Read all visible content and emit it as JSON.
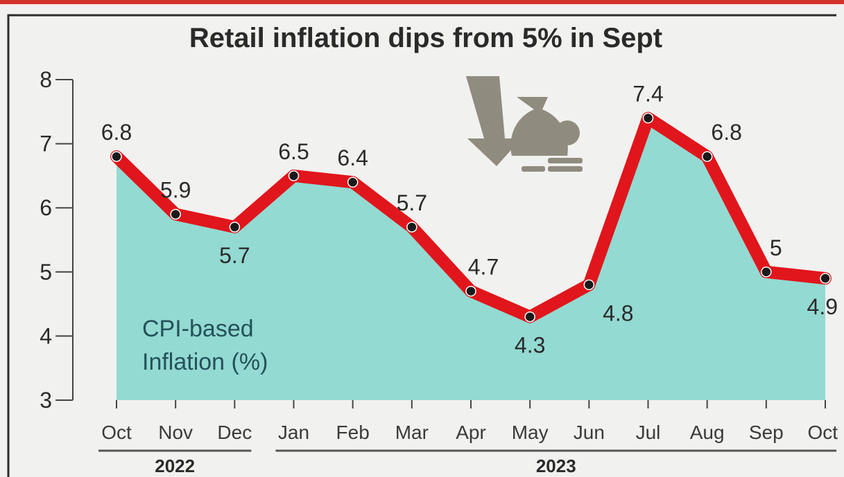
{
  "chart_data": {
    "type": "line",
    "title": "Retail inflation dips from 5% in Sept",
    "annotation": [
      "CPI-based",
      "Inflation (%)"
    ],
    "categories": [
      "Oct",
      "Nov",
      "Dec",
      "Jan",
      "Feb",
      "Mar",
      "Apr",
      "May",
      "Jun",
      "Jul",
      "Aug",
      "Sep",
      "Oct"
    ],
    "year_groups": [
      {
        "label": "2022",
        "from": 0,
        "to": 2
      },
      {
        "label": "2023",
        "from": 3,
        "to": 12
      }
    ],
    "series": [
      {
        "values": [
          6.8,
          5.9,
          5.7,
          6.5,
          6.4,
          5.7,
          4.7,
          4.3,
          4.8,
          7.4,
          6.8,
          5.0,
          4.9
        ]
      }
    ],
    "data_labels": [
      "6.8",
      "5.9",
      "5.7",
      "6.5",
      "6.4",
      "5.7",
      "4.7",
      "4.3",
      "4.8",
      "7.4",
      "6.8",
      "5",
      "4.9"
    ],
    "yticks": [
      "3",
      "4",
      "5",
      "6",
      "7",
      "8"
    ],
    "ylim": [
      3,
      8
    ],
    "grid": false,
    "legend": "none",
    "colors": {
      "line": "#e0161c",
      "area": "#93dad2",
      "point": "#1a1a1a",
      "frame": "#2b2b2b",
      "accent_top": "#d4322c",
      "icon": "#8a8678"
    }
  },
  "icon": "money-bag-down-arrow-icon"
}
